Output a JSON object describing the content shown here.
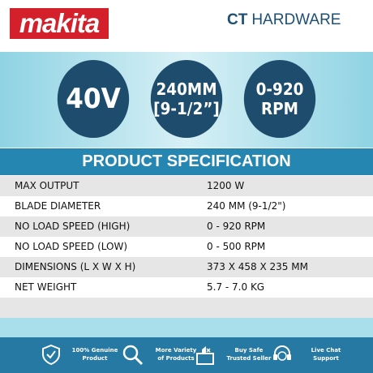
{
  "header": {
    "brand": "makita",
    "store_prefix": "CT",
    "store_name": "HARDWARE"
  },
  "badges": [
    {
      "lines": [
        "40V"
      ]
    },
    {
      "lines": [
        "240MM",
        "[9-1/2”]"
      ]
    },
    {
      "lines": [
        "0-920",
        "RPM"
      ]
    }
  ],
  "table": {
    "title": "PRODUCT SPECIFICATION",
    "rows": [
      [
        "MAX OUTPUT",
        "1200 W"
      ],
      [
        "BLADE DIAMETER",
        "240 MM (9-1/2\")"
      ],
      [
        "NO LOAD SPEED (HIGH)",
        "0 - 920 RPM"
      ],
      [
        "NO LOAD SPEED (LOW)",
        "0 - 500 RPM"
      ],
      [
        "DIMENSIONS (L X W X H)",
        "373 X 458 X 235 MM"
      ],
      [
        "NET WEIGHT",
        "5.7 - 7.0 KG"
      ]
    ]
  },
  "footer": [
    {
      "lines": [
        "100% Genuine",
        "Product"
      ]
    },
    {
      "lines": [
        "More Variety",
        "of Products"
      ]
    },
    {
      "lines": [
        "Buy Safe",
        "Trusted Seller"
      ]
    },
    {
      "lines": [
        "Live Chat",
        "Support"
      ]
    }
  ]
}
